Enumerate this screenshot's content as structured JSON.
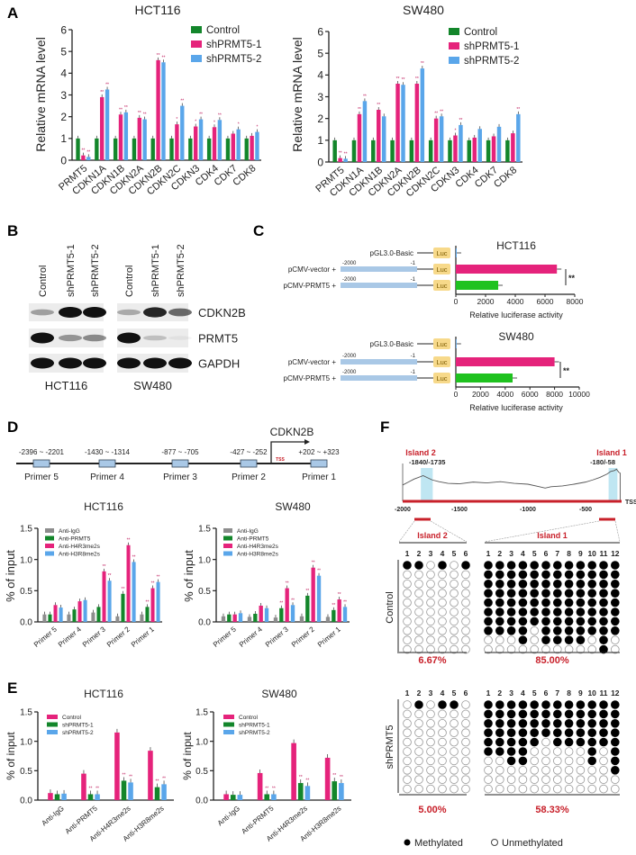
{
  "panel_labels": [
    "A",
    "B",
    "C",
    "D",
    "E",
    "F"
  ],
  "chart_data": [
    {
      "type": "bar",
      "title": "HCT116",
      "ylabel": "Relative mRNA level",
      "ylim": [
        0,
        6
      ],
      "yticks": [
        0,
        1,
        2,
        3,
        4,
        5,
        6
      ],
      "ytick_labels": [
        "0",
        "1",
        "2",
        "3",
        "4",
        "5",
        "6"
      ],
      "categories": [
        "PRMT5",
        "CDKN1A",
        "CDKN1B",
        "CDKN2A",
        "CDKN2B",
        "CDKN2C",
        "CDKN3",
        "CDK4",
        "CDK7",
        "CDK8"
      ],
      "series": [
        {
          "name": "Control",
          "color": "#13862b",
          "values": [
            1,
            1,
            1,
            1,
            1,
            1,
            1,
            1,
            1,
            1
          ],
          "sig": [
            "",
            "",
            "",
            "",
            "",
            "",
            "",
            "",
            "",
            ""
          ]
        },
        {
          "name": "shPRMT5-1",
          "color": "#e5237b",
          "values": [
            0.22,
            2.9,
            2.1,
            1.95,
            4.6,
            1.65,
            1.55,
            1.52,
            1.22,
            1.12
          ],
          "sig": [
            "**",
            "**",
            "**",
            "**",
            "**",
            "*",
            "*",
            "*",
            "",
            ""
          ]
        },
        {
          "name": "shPRMT5-2",
          "color": "#5aa6ea",
          "values": [
            0.15,
            3.25,
            2.2,
            1.88,
            4.5,
            2.5,
            1.88,
            1.85,
            1.42,
            1.3
          ],
          "sig": [
            "**",
            "**",
            "**",
            "**",
            "**",
            "**",
            "**",
            "**",
            "*",
            "*"
          ]
        }
      ],
      "legend": "top-right"
    },
    {
      "type": "bar",
      "title": "SW480",
      "ylabel": "Relative mRNA level",
      "ylim": [
        0,
        6
      ],
      "yticks": [
        0,
        1,
        2,
        3,
        4,
        5,
        6
      ],
      "ytick_labels": [
        "0",
        "1",
        "2",
        "3",
        "4",
        "5",
        "6"
      ],
      "categories": [
        "PRMT5",
        "CDKN1A",
        "CDKN1B",
        "CDKN2A",
        "CDKN2B",
        "CDKN2C",
        "CDKN3",
        "CDK4",
        "CDK7",
        "CDK8"
      ],
      "series": [
        {
          "name": "Control",
          "color": "#13862b",
          "values": [
            1,
            1,
            1,
            1,
            1,
            1,
            1,
            1,
            1,
            1
          ],
          "sig": [
            "",
            "",
            "",
            "",
            "",
            "",
            "",
            "",
            "",
            ""
          ]
        },
        {
          "name": "shPRMT5-1",
          "color": "#e5237b",
          "values": [
            0.18,
            2.2,
            2.4,
            3.6,
            3.6,
            2.0,
            1.22,
            1.12,
            1.18,
            1.32
          ],
          "sig": [
            "**",
            "**",
            "**",
            "**",
            "**",
            "**",
            "*",
            "",
            "",
            ""
          ]
        },
        {
          "name": "shPRMT5-2",
          "color": "#5aa6ea",
          "values": [
            0.15,
            2.8,
            2.1,
            3.55,
            4.3,
            2.1,
            1.7,
            1.52,
            1.62,
            2.2
          ],
          "sig": [
            "**",
            "**",
            "",
            "**",
            "**",
            "**",
            "**",
            "",
            "",
            "**"
          ]
        }
      ],
      "legend": "top-right"
    },
    {
      "type": "bar",
      "title": "HCT116",
      "ylabel": "% of input",
      "ylim": [
        0,
        1.5
      ],
      "yticks": [
        0,
        0.5,
        1,
        1.5
      ],
      "ytick_labels": [
        "0.0",
        "0.5",
        "1.0",
        "1.5"
      ],
      "categories": [
        "Primer 5",
        "Primer 4",
        "Primer 3",
        "Primer 2",
        "Primer 1"
      ],
      "series": [
        {
          "name": "Anti-IgG",
          "color": "#8d8d8d",
          "values": [
            0.12,
            0.12,
            0.15,
            0.09,
            0.12
          ],
          "sig": [
            "",
            "",
            "",
            "",
            ""
          ]
        },
        {
          "name": "Anti-PRMT5",
          "color": "#13862b",
          "values": [
            0.12,
            0.2,
            0.24,
            0.45,
            0.24
          ],
          "sig": [
            "",
            "",
            "",
            "**",
            "**"
          ]
        },
        {
          "name": "Anti-H4R3me2s",
          "color": "#e5237b",
          "values": [
            0.27,
            0.33,
            0.81,
            1.23,
            0.54
          ],
          "sig": [
            "",
            "",
            "**",
            "**",
            "**"
          ]
        },
        {
          "name": "Anti-H3R8me2s",
          "color": "#5aa6ea",
          "values": [
            0.23,
            0.35,
            0.66,
            0.96,
            0.64
          ],
          "sig": [
            "",
            "",
            "**",
            "**",
            "**"
          ]
        }
      ],
      "legend": "top-left"
    },
    {
      "type": "bar",
      "title": "SW480",
      "ylabel": "% of input",
      "ylim": [
        0,
        1.5
      ],
      "yticks": [
        0,
        0.5,
        1,
        1.5
      ],
      "ytick_labels": [
        "0.0",
        "0.5",
        "1.0",
        "1.5"
      ],
      "categories": [
        "Primer 5",
        "Primer 4",
        "Primer 3",
        "Primer 2",
        "Primer 1"
      ],
      "series": [
        {
          "name": "Anti-IgG",
          "color": "#8d8d8d",
          "values": [
            0.09,
            0.08,
            0.07,
            0.09,
            0.08
          ],
          "sig": [
            "",
            "",
            "",
            "",
            ""
          ]
        },
        {
          "name": "Anti-PRMT5",
          "color": "#13862b",
          "values": [
            0.12,
            0.13,
            0.22,
            0.42,
            0.19
          ],
          "sig": [
            "",
            "",
            "**",
            "**",
            "**"
          ]
        },
        {
          "name": "Anti-H4R3me2s",
          "color": "#e5237b",
          "values": [
            0.12,
            0.26,
            0.54,
            0.87,
            0.36
          ],
          "sig": [
            "",
            "",
            "**",
            "**",
            "**"
          ]
        },
        {
          "name": "Anti-H3R8me2s",
          "color": "#5aa6ea",
          "values": [
            0.14,
            0.22,
            0.27,
            0.74,
            0.24
          ],
          "sig": [
            "",
            "",
            "**",
            "**",
            "**"
          ]
        }
      ],
      "legend": "top-left"
    },
    {
      "type": "bar",
      "title": "HCT116",
      "ylabel": "% of input",
      "ylim": [
        0,
        1.5
      ],
      "yticks": [
        0,
        0.5,
        1,
        1.5
      ],
      "ytick_labels": [
        "0.0",
        "0.5",
        "1.0",
        "1.5"
      ],
      "categories": [
        "Anti-IgG",
        "Anti-PRMT5",
        "Anti-H4R3me2s",
        "Anti-H3R8me2s"
      ],
      "series": [
        {
          "name": "Control",
          "color": "#e5237b",
          "values": [
            0.12,
            0.45,
            1.15,
            0.84
          ],
          "sig": [
            "",
            "",
            "",
            ""
          ]
        },
        {
          "name": "shPRMT5-1",
          "color": "#13862b",
          "values": [
            0.1,
            0.1,
            0.33,
            0.22
          ],
          "sig": [
            "",
            "**",
            "**",
            "**"
          ]
        },
        {
          "name": "shPRMT5-2",
          "color": "#5aa6ea",
          "values": [
            0.11,
            0.1,
            0.3,
            0.27
          ],
          "sig": [
            "",
            "**",
            "**",
            "**"
          ]
        }
      ],
      "legend": "top-left"
    },
    {
      "type": "bar",
      "title": "SW480",
      "ylabel": "% of input",
      "ylim": [
        0,
        1.5
      ],
      "yticks": [
        0,
        0.5,
        1,
        1.5
      ],
      "ytick_labels": [
        "0.0",
        "0.5",
        "1.0",
        "1.5"
      ],
      "categories": [
        "Anti-IgG",
        "Anti-PRMT5",
        "Anti-H4R3me2s",
        "Anti-H3R8me2s"
      ],
      "series": [
        {
          "name": "Control",
          "color": "#e5237b",
          "values": [
            0.1,
            0.46,
            0.97,
            0.72
          ],
          "sig": [
            "",
            "",
            "",
            ""
          ]
        },
        {
          "name": "shPRMT5-1",
          "color": "#13862b",
          "values": [
            0.09,
            0.1,
            0.29,
            0.32
          ],
          "sig": [
            "",
            "**",
            "**",
            "**"
          ]
        },
        {
          "name": "shPRMT5-2",
          "color": "#5aa6ea",
          "values": [
            0.09,
            0.1,
            0.24,
            0.29
          ],
          "sig": [
            "",
            "**",
            "**",
            "**"
          ]
        }
      ],
      "legend": "top-left"
    },
    {
      "type": "bar",
      "orientation": "horizontal",
      "title": "HCT116",
      "xlabel": "Relative luciferase activity",
      "xlim": [
        0,
        8000
      ],
      "xticks": [
        0,
        2000,
        4000,
        6000,
        8000
      ],
      "xtick_labels": [
        "0",
        "2000",
        "4000",
        "6000",
        "8000"
      ],
      "categories": [
        "pGL3.0-Basic",
        "pCMV-vector +",
        "pCMV-PRMT5 +"
      ],
      "values": [
        60,
        6800,
        2850
      ],
      "colors": [
        "#5aa6ea",
        "#e5237b",
        "#1fc21f"
      ],
      "significance": "**"
    },
    {
      "type": "bar",
      "orientation": "horizontal",
      "title": "SW480",
      "xlabel": "Relative luciferase activity",
      "xlim": [
        0,
        10000
      ],
      "xticks": [
        0,
        2000,
        4000,
        6000,
        8000,
        10000
      ],
      "xtick_labels": [
        "0",
        "2000",
        "4000",
        "6000",
        "8000",
        "10000"
      ],
      "categories": [
        "pGL3.0-Basic",
        "pCMV-vector +",
        "pCMV-PRMT5 +"
      ],
      "values": [
        60,
        8000,
        4600
      ],
      "colors": [
        "#5aa6ea",
        "#e5237b",
        "#1fc21f"
      ],
      "significance": "**"
    }
  ],
  "construct": {
    "start": "-2000",
    "end": "-1",
    "reporter": "Luc",
    "promoter_color": "#a9c8e6",
    "reporter_color": "#f7d98a"
  },
  "blot": {
    "lanes": [
      "Control",
      "shPRMT5-1",
      "shPRMT5-2"
    ],
    "proteins": [
      "CDKN2B",
      "PRMT5",
      "GAPDH"
    ],
    "cell_lines": [
      "HCT116",
      "SW480"
    ]
  },
  "promoter_map": {
    "gene": "CDKN2B",
    "tss": "TSS",
    "primers": [
      {
        "name": "Primer 5",
        "range": "-2396 ~ -2201"
      },
      {
        "name": "Primer 4",
        "range": "-1430 ~ -1314"
      },
      {
        "name": "Primer 3",
        "range": "-877 ~ -705"
      },
      {
        "name": "Primer 2",
        "range": "-427 ~ -252"
      },
      {
        "name": "Primer 1",
        "range": "+202 ~ +323"
      }
    ]
  },
  "methylation": {
    "islands": [
      {
        "name": "Island 2",
        "range": "-1840/-1735"
      },
      {
        "name": "Island 1",
        "range": "-180/-58"
      }
    ],
    "tss": "TSS",
    "axis_ticks": [
      "-2000",
      "-1500",
      "-1000",
      "-500"
    ],
    "gc_profile": [
      [
        -2000,
        38
      ],
      [
        -1950,
        45
      ],
      [
        -1900,
        52
      ],
      [
        -1860,
        56
      ],
      [
        -1820,
        60
      ],
      [
        -1780,
        55
      ],
      [
        -1740,
        50
      ],
      [
        -1680,
        46
      ],
      [
        -1600,
        42
      ],
      [
        -1500,
        41
      ],
      [
        -1400,
        45
      ],
      [
        -1300,
        43
      ],
      [
        -1200,
        46
      ],
      [
        -1100,
        42
      ],
      [
        -1000,
        40
      ],
      [
        -900,
        34
      ],
      [
        -850,
        31
      ],
      [
        -800,
        34
      ],
      [
        -700,
        36
      ],
      [
        -600,
        40
      ],
      [
        -500,
        45
      ],
      [
        -400,
        50
      ],
      [
        -300,
        56
      ],
      [
        -200,
        64
      ],
      [
        -150,
        70
      ],
      [
        -100,
        72
      ],
      [
        -70,
        75
      ],
      [
        -40,
        68
      ],
      [
        -20,
        66
      ]
    ],
    "groups": [
      {
        "label": "Control",
        "island2": {
          "cols": [
            "1",
            "2",
            "3",
            "4",
            "5",
            "6"
          ],
          "rows": [
            "110101",
            "000000",
            "000000",
            "000000",
            "000000",
            "000000",
            "000000",
            "000000",
            "000000",
            "000000"
          ],
          "percent": "6.67%"
        },
        "island1": {
          "cols": [
            "1",
            "2",
            "3",
            "4",
            "5",
            "6",
            "7",
            "8",
            "9",
            "10",
            "11",
            "12"
          ],
          "rows": [
            "111111111111",
            "111111111111",
            "111111111111",
            "111111111111",
            "111111111111",
            "111111111111",
            "111111111111",
            "111101111111",
            "000101111010",
            "000000000010"
          ],
          "percent": "85.00%"
        }
      },
      {
        "label": "shPRMT5",
        "island2": {
          "cols": [
            "1",
            "2",
            "3",
            "4",
            "5",
            "6"
          ],
          "rows": [
            "010110",
            "000000",
            "000000",
            "000000",
            "000000",
            "000000",
            "000000",
            "000000",
            "000000",
            "000000"
          ],
          "percent": "5.00%"
        },
        "island1": {
          "cols": [
            "1",
            "2",
            "3",
            "4",
            "5",
            "6",
            "7",
            "8",
            "9",
            "10",
            "11",
            "12"
          ],
          "rows": [
            "111111111111",
            "111111111111",
            "111111111111",
            "111111111111",
            "111110111111",
            "111100000101",
            "001100000101",
            "000000000001",
            "000000000000",
            "000000000000"
          ],
          "percent": "58.33%"
        }
      }
    ],
    "legend": {
      "methylated": "Methylated",
      "unmethylated": "Unmethylated"
    },
    "highlight_color": "#c8202a",
    "island_fill": "#bfe6f2"
  }
}
